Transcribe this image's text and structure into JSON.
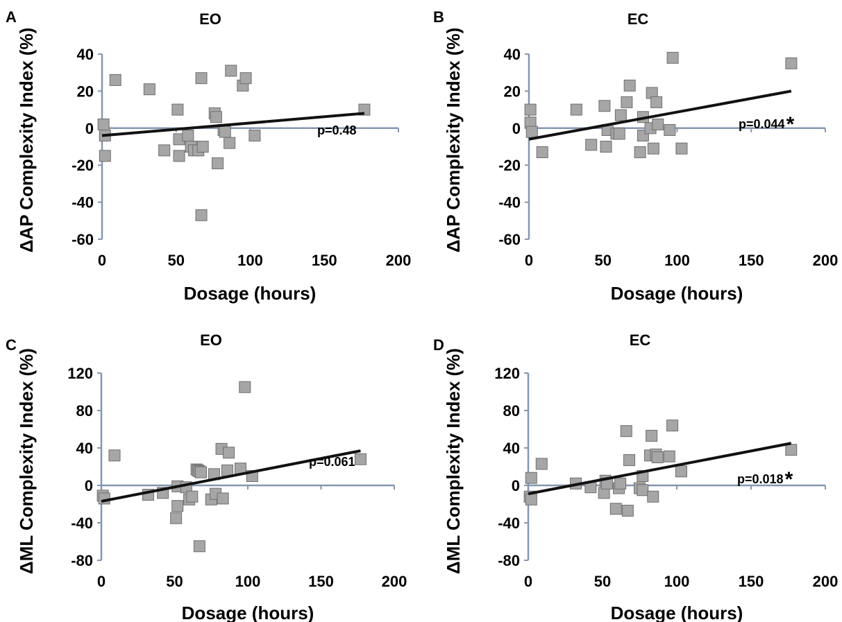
{
  "chart_data": [
    {
      "type": "scatter",
      "panel": "A",
      "title": "EO",
      "xlabel": "Dosage (hours)",
      "ylabel": "ΔAP Complexity Index (%)",
      "xlim": [
        0,
        200
      ],
      "ylim": [
        -60,
        40
      ],
      "xticks": [
        "0",
        "50",
        "100",
        "150",
        "200"
      ],
      "yticks": [
        "40",
        "20",
        "0",
        "-20",
        "-40",
        "-60"
      ],
      "grid": false,
      "marker": "square",
      "point_color": "#a6a6a6",
      "trend_color": "#111111",
      "x": [
        1,
        2,
        2,
        9,
        32,
        42,
        51,
        52,
        52,
        58,
        60,
        62,
        65,
        67,
        67,
        68,
        76,
        77,
        78,
        82,
        83,
        86,
        87,
        95,
        97,
        103,
        177
      ],
      "y": [
        2,
        -4,
        -15,
        26,
        21,
        -12,
        10,
        -6,
        -15,
        -4,
        -10,
        -12,
        -12,
        27,
        -47,
        -10,
        8,
        6,
        -19,
        -1,
        -2,
        -8,
        31,
        23,
        27,
        -4,
        10
      ],
      "trendline": {
        "x": [
          0,
          177
        ],
        "y": [
          -4,
          8
        ]
      },
      "annotation": "p=0.48",
      "significance": ""
    },
    {
      "type": "scatter",
      "panel": "B",
      "title": "EC",
      "xlabel": "Dosage (hours)",
      "ylabel": "ΔAP Complexity Index (%)",
      "xlim": [
        0,
        200
      ],
      "ylim": [
        -60,
        40
      ],
      "xticks": [
        "0",
        "50",
        "100",
        "150",
        "200"
      ],
      "yticks": [
        "40",
        "20",
        "0",
        "-20",
        "-40",
        "-60"
      ],
      "grid": false,
      "marker": "square",
      "point_color": "#a6a6a6",
      "trend_color": "#111111",
      "x": [
        1,
        1,
        2,
        9,
        32,
        42,
        51,
        52,
        53,
        59,
        61,
        62,
        66,
        68,
        75,
        77,
        77,
        82,
        83,
        84,
        86,
        87,
        95,
        97,
        103,
        177
      ],
      "y": [
        10,
        3,
        -2,
        -13,
        10,
        -9,
        12,
        -10,
        -1,
        -3,
        -3,
        7,
        14,
        23,
        -13,
        -4,
        6,
        0,
        19,
        -11,
        14,
        2,
        -1,
        38,
        -11,
        35
      ],
      "trendline": {
        "x": [
          0,
          177
        ],
        "y": [
          -6,
          20
        ]
      },
      "annotation": "p=0.044",
      "significance": "*"
    },
    {
      "type": "scatter",
      "panel": "C",
      "title": "EO",
      "xlabel": "Dosage (hours)",
      "ylabel": "ΔML Complexity Index (%)",
      "xlim": [
        0,
        200
      ],
      "ylim": [
        -80,
        120
      ],
      "xticks": [
        "0",
        "50",
        "100",
        "150",
        "200"
      ],
      "yticks": [
        "120",
        "80",
        "40",
        "0",
        "-40",
        "-80"
      ],
      "grid": false,
      "marker": "square",
      "point_color": "#a6a6a6",
      "trend_color": "#111111",
      "x": [
        1,
        2,
        9,
        32,
        42,
        51,
        52,
        52,
        58,
        60,
        62,
        65,
        66,
        67,
        67,
        68,
        75,
        77,
        78,
        82,
        83,
        86,
        87,
        95,
        98,
        103,
        177
      ],
      "y": [
        -11,
        -14,
        32,
        -10,
        -8,
        -35,
        -22,
        -1,
        -2,
        -15,
        -12,
        17,
        16,
        -65,
        15,
        14,
        -15,
        12,
        -9,
        39,
        -14,
        16,
        35,
        18,
        105,
        10,
        28
      ],
      "trendline": {
        "x": [
          0,
          177
        ],
        "y": [
          -17,
          37
        ]
      },
      "annotation": "p=0.061",
      "significance": ""
    },
    {
      "type": "scatter",
      "panel": "D",
      "title": "EC",
      "xlabel": "Dosage (hours)",
      "ylabel": "ΔML Complexity Index (%)",
      "xlim": [
        0,
        200
      ],
      "ylim": [
        -80,
        120
      ],
      "xticks": [
        "0",
        "50",
        "100",
        "150",
        "200"
      ],
      "yticks": [
        "120",
        "80",
        "40",
        "0",
        "-40",
        "-80"
      ],
      "grid": false,
      "marker": "square",
      "point_color": "#a6a6a6",
      "trend_color": "#111111",
      "x": [
        1,
        2,
        2,
        9,
        32,
        42,
        51,
        52,
        53,
        59,
        61,
        62,
        66,
        67,
        68,
        75,
        77,
        77,
        82,
        83,
        84,
        86,
        87,
        95,
        97,
        103,
        177
      ],
      "y": [
        -12,
        -15,
        8,
        23,
        2,
        -2,
        -8,
        5,
        2,
        -25,
        -3,
        2,
        58,
        -27,
        27,
        -3,
        -5,
        10,
        32,
        53,
        -12,
        33,
        30,
        31,
        64,
        15,
        38
      ],
      "trendline": {
        "x": [
          0,
          177
        ],
        "y": [
          -9,
          45
        ]
      },
      "annotation": "p=0.018",
      "significance": "*"
    }
  ]
}
